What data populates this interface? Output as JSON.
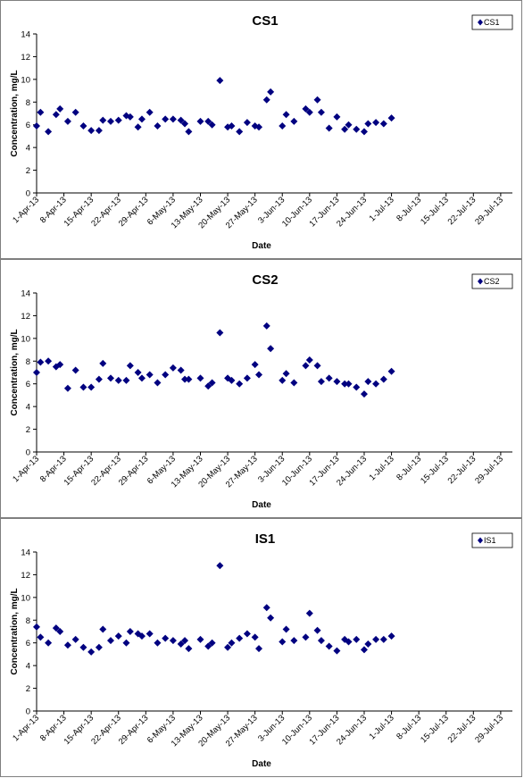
{
  "chart_data": [
    {
      "type": "scatter",
      "title": "CS1",
      "xlabel": "Date",
      "ylabel": "Concentration, mg/L",
      "ylim": [
        0,
        14
      ],
      "yticks": [
        0,
        2,
        4,
        6,
        8,
        10,
        12,
        14
      ],
      "xlim": [
        "2013-04-01",
        "2013-08-01"
      ],
      "xticks": [
        "1-Apr-13",
        "8-Apr-13",
        "15-Apr-13",
        "22-Apr-13",
        "29-Apr-13",
        "6-May-13",
        "13-May-13",
        "20-May-13",
        "27-May-13",
        "3-Jun-13",
        "10-Jun-13",
        "17-Jun-13",
        "24-Jun-13",
        "1-Jul-13",
        "8-Jul-13",
        "15-Jul-13",
        "22-Jul-13",
        "29-Jul-13"
      ],
      "legend": "top-right",
      "marker_color": "#000080",
      "series": [
        {
          "name": "CS1",
          "points": [
            [
              "2013-04-01",
              5.9
            ],
            [
              "2013-04-02",
              7.1
            ],
            [
              "2013-04-04",
              5.4
            ],
            [
              "2013-04-06",
              6.9
            ],
            [
              "2013-04-07",
              7.4
            ],
            [
              "2013-04-09",
              6.3
            ],
            [
              "2013-04-11",
              7.1
            ],
            [
              "2013-04-13",
              5.9
            ],
            [
              "2013-04-15",
              5.5
            ],
            [
              "2013-04-17",
              5.5
            ],
            [
              "2013-04-18",
              6.4
            ],
            [
              "2013-04-20",
              6.3
            ],
            [
              "2013-04-22",
              6.4
            ],
            [
              "2013-04-24",
              6.8
            ],
            [
              "2013-04-25",
              6.7
            ],
            [
              "2013-04-27",
              5.8
            ],
            [
              "2013-04-28",
              6.5
            ],
            [
              "2013-04-30",
              7.1
            ],
            [
              "2013-05-02",
              5.9
            ],
            [
              "2013-05-04",
              6.5
            ],
            [
              "2013-05-06",
              6.5
            ],
            [
              "2013-05-08",
              6.4
            ],
            [
              "2013-05-09",
              6.1
            ],
            [
              "2013-05-10",
              5.4
            ],
            [
              "2013-05-13",
              6.3
            ],
            [
              "2013-05-15",
              6.3
            ],
            [
              "2013-05-16",
              6.0
            ],
            [
              "2013-05-18",
              9.9
            ],
            [
              "2013-05-20",
              5.8
            ],
            [
              "2013-05-21",
              5.9
            ],
            [
              "2013-05-23",
              5.4
            ],
            [
              "2013-05-25",
              6.2
            ],
            [
              "2013-05-27",
              5.9
            ],
            [
              "2013-05-28",
              5.8
            ],
            [
              "2013-05-30",
              8.2
            ],
            [
              "2013-05-31",
              8.9
            ],
            [
              "2013-06-03",
              5.9
            ],
            [
              "2013-06-04",
              6.9
            ],
            [
              "2013-06-06",
              6.3
            ],
            [
              "2013-06-09",
              7.4
            ],
            [
              "2013-06-10",
              7.1
            ],
            [
              "2013-06-12",
              8.2
            ],
            [
              "2013-06-13",
              7.1
            ],
            [
              "2013-06-15",
              5.7
            ],
            [
              "2013-06-17",
              6.7
            ],
            [
              "2013-06-19",
              5.6
            ],
            [
              "2013-06-20",
              6.0
            ],
            [
              "2013-06-22",
              5.6
            ],
            [
              "2013-06-24",
              5.4
            ],
            [
              "2013-06-25",
              6.1
            ],
            [
              "2013-06-27",
              6.2
            ],
            [
              "2013-06-29",
              6.1
            ],
            [
              "2013-07-01",
              6.6
            ]
          ]
        }
      ]
    },
    {
      "type": "scatter",
      "title": "CS2",
      "xlabel": "Date",
      "ylabel": "Concentration, mg/L",
      "ylim": [
        0,
        14
      ],
      "yticks": [
        0,
        2,
        4,
        6,
        8,
        10,
        12,
        14
      ],
      "xlim": [
        "2013-04-01",
        "2013-08-01"
      ],
      "xticks": [
        "1-Apr-13",
        "8-Apr-13",
        "15-Apr-13",
        "22-Apr-13",
        "29-Apr-13",
        "6-May-13",
        "13-May-13",
        "20-May-13",
        "27-May-13",
        "3-Jun-13",
        "10-Jun-13",
        "17-Jun-13",
        "24-Jun-13",
        "1-Jul-13",
        "8-Jul-13",
        "15-Jul-13",
        "22-Jul-13",
        "29-Jul-13"
      ],
      "legend": "top-right",
      "marker_color": "#000080",
      "series": [
        {
          "name": "CS2",
          "points": [
            [
              "2013-04-01",
              7.0
            ],
            [
              "2013-04-02",
              7.9
            ],
            [
              "2013-04-04",
              8.0
            ],
            [
              "2013-04-06",
              7.5
            ],
            [
              "2013-04-07",
              7.7
            ],
            [
              "2013-04-09",
              5.6
            ],
            [
              "2013-04-11",
              7.2
            ],
            [
              "2013-04-13",
              5.7
            ],
            [
              "2013-04-15",
              5.7
            ],
            [
              "2013-04-17",
              6.4
            ],
            [
              "2013-04-18",
              7.8
            ],
            [
              "2013-04-20",
              6.5
            ],
            [
              "2013-04-22",
              6.3
            ],
            [
              "2013-04-24",
              6.3
            ],
            [
              "2013-04-25",
              7.6
            ],
            [
              "2013-04-27",
              7.0
            ],
            [
              "2013-04-28",
              6.5
            ],
            [
              "2013-04-30",
              6.8
            ],
            [
              "2013-05-02",
              6.1
            ],
            [
              "2013-05-04",
              6.8
            ],
            [
              "2013-05-06",
              7.4
            ],
            [
              "2013-05-08",
              7.2
            ],
            [
              "2013-05-09",
              6.4
            ],
            [
              "2013-05-10",
              6.4
            ],
            [
              "2013-05-13",
              6.5
            ],
            [
              "2013-05-15",
              5.8
            ],
            [
              "2013-05-16",
              6.1
            ],
            [
              "2013-05-18",
              10.5
            ],
            [
              "2013-05-20",
              6.5
            ],
            [
              "2013-05-21",
              6.3
            ],
            [
              "2013-05-23",
              6.0
            ],
            [
              "2013-05-25",
              6.5
            ],
            [
              "2013-05-27",
              7.7
            ],
            [
              "2013-05-28",
              6.8
            ],
            [
              "2013-05-30",
              11.1
            ],
            [
              "2013-05-31",
              9.1
            ],
            [
              "2013-06-03",
              6.3
            ],
            [
              "2013-06-04",
              6.9
            ],
            [
              "2013-06-06",
              6.1
            ],
            [
              "2013-06-09",
              7.6
            ],
            [
              "2013-06-10",
              8.1
            ],
            [
              "2013-06-12",
              7.6
            ],
            [
              "2013-06-13",
              6.2
            ],
            [
              "2013-06-15",
              6.5
            ],
            [
              "2013-06-17",
              6.2
            ],
            [
              "2013-06-19",
              6.0
            ],
            [
              "2013-06-20",
              6.0
            ],
            [
              "2013-06-22",
              5.7
            ],
            [
              "2013-06-24",
              5.1
            ],
            [
              "2013-06-25",
              6.2
            ],
            [
              "2013-06-27",
              6.0
            ],
            [
              "2013-06-29",
              6.4
            ],
            [
              "2013-07-01",
              7.1
            ]
          ]
        }
      ]
    },
    {
      "type": "scatter",
      "title": "IS1",
      "xlabel": "Date",
      "ylabel": "Concentration, mg/L",
      "ylim": [
        0,
        14
      ],
      "yticks": [
        0,
        2,
        4,
        6,
        8,
        10,
        12,
        14
      ],
      "xlim": [
        "2013-04-01",
        "2013-08-01"
      ],
      "xticks": [
        "1-Apr-13",
        "8-Apr-13",
        "15-Apr-13",
        "22-Apr-13",
        "29-Apr-13",
        "6-May-13",
        "13-May-13",
        "20-May-13",
        "27-May-13",
        "3-Jun-13",
        "10-Jun-13",
        "17-Jun-13",
        "24-Jun-13",
        "1-Jul-13",
        "8-Jul-13",
        "15-Jul-13",
        "22-Jul-13",
        "29-Jul-13"
      ],
      "legend": "top-right",
      "marker_color": "#000080",
      "series": [
        {
          "name": "IS1",
          "points": [
            [
              "2013-04-01",
              7.4
            ],
            [
              "2013-04-02",
              6.5
            ],
            [
              "2013-04-04",
              6.0
            ],
            [
              "2013-04-06",
              7.3
            ],
            [
              "2013-04-07",
              7.0
            ],
            [
              "2013-04-09",
              5.8
            ],
            [
              "2013-04-11",
              6.3
            ],
            [
              "2013-04-13",
              5.6
            ],
            [
              "2013-04-15",
              5.2
            ],
            [
              "2013-04-17",
              5.6
            ],
            [
              "2013-04-18",
              7.2
            ],
            [
              "2013-04-20",
              6.2
            ],
            [
              "2013-04-22",
              6.6
            ],
            [
              "2013-04-24",
              6.0
            ],
            [
              "2013-04-25",
              7.0
            ],
            [
              "2013-04-27",
              6.8
            ],
            [
              "2013-04-28",
              6.6
            ],
            [
              "2013-04-30",
              6.8
            ],
            [
              "2013-05-02",
              6.0
            ],
            [
              "2013-05-04",
              6.4
            ],
            [
              "2013-05-06",
              6.2
            ],
            [
              "2013-05-08",
              5.9
            ],
            [
              "2013-05-09",
              6.2
            ],
            [
              "2013-05-10",
              5.5
            ],
            [
              "2013-05-13",
              6.3
            ],
            [
              "2013-05-15",
              5.7
            ],
            [
              "2013-05-16",
              6.0
            ],
            [
              "2013-05-18",
              12.8
            ],
            [
              "2013-05-20",
              5.6
            ],
            [
              "2013-05-21",
              6.0
            ],
            [
              "2013-05-23",
              6.4
            ],
            [
              "2013-05-25",
              6.8
            ],
            [
              "2013-05-27",
              6.5
            ],
            [
              "2013-05-28",
              5.5
            ],
            [
              "2013-05-30",
              9.1
            ],
            [
              "2013-05-31",
              8.2
            ],
            [
              "2013-06-03",
              6.1
            ],
            [
              "2013-06-04",
              7.2
            ],
            [
              "2013-06-06",
              6.2
            ],
            [
              "2013-06-09",
              6.5
            ],
            [
              "2013-06-10",
              8.6
            ],
            [
              "2013-06-12",
              7.1
            ],
            [
              "2013-06-13",
              6.2
            ],
            [
              "2013-06-15",
              5.7
            ],
            [
              "2013-06-17",
              5.3
            ],
            [
              "2013-06-19",
              6.3
            ],
            [
              "2013-06-20",
              6.1
            ],
            [
              "2013-06-22",
              6.3
            ],
            [
              "2013-06-24",
              5.4
            ],
            [
              "2013-06-25",
              5.9
            ],
            [
              "2013-06-27",
              6.3
            ],
            [
              "2013-06-29",
              6.3
            ],
            [
              "2013-07-01",
              6.6
            ]
          ]
        }
      ]
    }
  ]
}
